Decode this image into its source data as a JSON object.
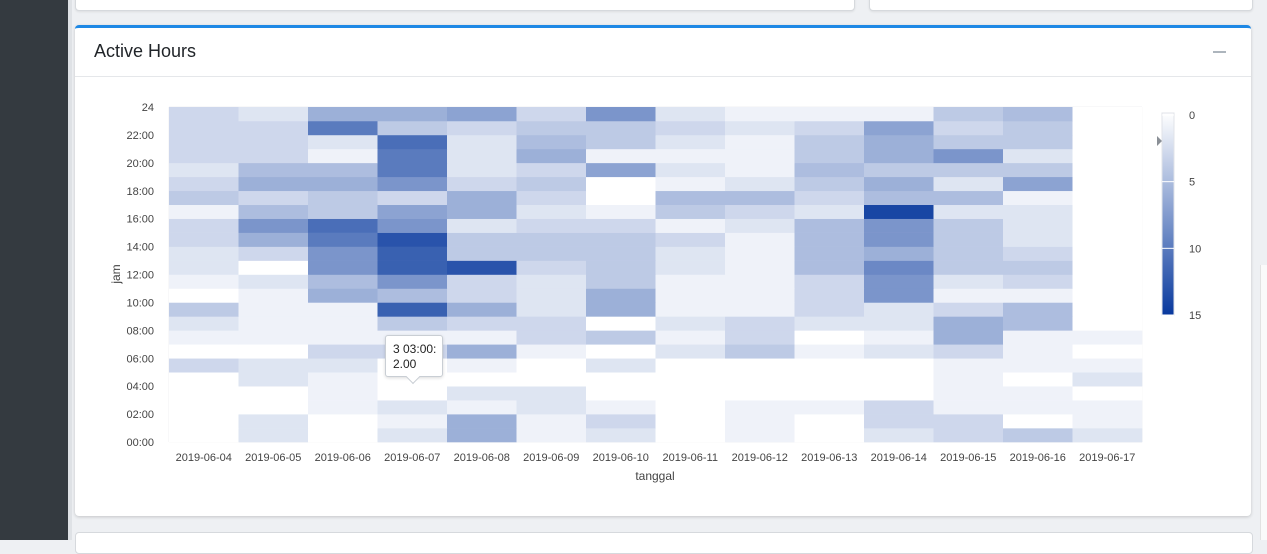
{
  "card": {
    "title": "Active Hours"
  },
  "tooltip": {
    "line1": "3 03:00:",
    "line2": "2.00"
  },
  "chart_data": {
    "type": "heatmap",
    "title": "",
    "xlabel": "tanggal",
    "ylabel": "jam",
    "x": [
      "2019-06-04",
      "2019-06-05",
      "2019-06-06",
      "2019-06-07",
      "2019-06-08",
      "2019-06-09",
      "2019-06-10",
      "2019-06-11",
      "2019-06-12",
      "2019-06-13",
      "2019-06-14",
      "2019-06-15",
      "2019-06-16",
      "2019-06-17"
    ],
    "y": [
      0,
      1,
      2,
      3,
      4,
      5,
      6,
      7,
      8,
      9,
      10,
      11,
      12,
      13,
      14,
      15,
      16,
      17,
      18,
      19,
      20,
      21,
      22,
      23
    ],
    "ytick_labels": [
      "00:00",
      "02:00",
      "04:00",
      "06:00",
      "08:00",
      "10:00",
      "12:00",
      "14:00",
      "16:00",
      "18:00",
      "20:00",
      "22:00",
      "24"
    ],
    "values": [
      [
        0,
        2,
        0,
        2,
        6,
        1,
        2,
        0,
        1,
        0,
        2,
        3,
        4,
        2
      ],
      [
        0,
        2,
        0,
        1,
        6,
        1,
        3,
        0,
        1,
        0,
        3,
        3,
        0,
        1
      ],
      [
        0,
        0,
        1,
        2,
        1,
        2,
        1,
        0,
        1,
        1,
        3,
        1,
        1,
        1
      ],
      [
        0,
        0,
        1,
        0,
        2,
        2,
        0,
        0,
        0,
        0,
        0,
        1,
        1,
        0
      ],
      [
        0,
        2,
        1,
        0,
        0,
        0,
        0,
        0,
        0,
        0,
        0,
        1,
        0,
        2
      ],
      [
        3,
        2,
        2,
        0,
        1,
        0,
        2,
        0,
        0,
        0,
        0,
        1,
        1,
        1
      ],
      [
        0,
        0,
        3,
        3,
        6,
        1,
        0,
        2,
        4,
        1,
        2,
        3,
        1,
        0
      ],
      [
        1,
        1,
        1,
        1,
        1,
        3,
        4,
        1,
        3,
        0,
        1,
        6,
        1,
        1
      ],
      [
        2,
        1,
        1,
        4,
        3,
        3,
        0,
        2,
        3,
        2,
        2,
        6,
        5,
        0
      ],
      [
        4,
        1,
        1,
        12,
        6,
        2,
        6,
        1,
        1,
        3,
        2,
        3,
        5,
        0
      ],
      [
        0,
        1,
        6,
        5,
        3,
        2,
        6,
        1,
        1,
        3,
        8,
        1,
        1,
        0
      ],
      [
        1,
        2,
        5,
        8,
        3,
        2,
        4,
        1,
        1,
        3,
        8,
        2,
        3,
        0
      ],
      [
        2,
        0,
        8,
        12,
        13,
        3,
        4,
        2,
        1,
        5,
        9,
        4,
        4,
        0
      ],
      [
        2,
        3,
        8,
        12,
        4,
        4,
        4,
        2,
        1,
        5,
        6,
        4,
        3,
        0
      ],
      [
        3,
        6,
        10,
        13,
        4,
        4,
        4,
        3,
        1,
        5,
        8,
        4,
        2,
        0
      ],
      [
        3,
        8,
        11,
        8,
        2,
        3,
        3,
        1,
        2,
        5,
        8,
        4,
        2,
        0
      ],
      [
        1,
        5,
        4,
        7,
        6,
        2,
        1,
        4,
        3,
        2,
        14,
        2,
        2,
        0
      ],
      [
        4,
        3,
        4,
        3,
        6,
        3,
        0,
        5,
        5,
        3,
        5,
        5,
        1,
        0
      ],
      [
        3,
        6,
        6,
        8,
        3,
        4,
        0,
        1,
        2,
        4,
        6,
        2,
        7,
        0
      ],
      [
        2,
        5,
        5,
        10,
        2,
        3,
        7,
        2,
        1,
        5,
        4,
        4,
        4,
        0
      ],
      [
        3,
        3,
        1,
        10,
        2,
        6,
        1,
        1,
        1,
        4,
        6,
        8,
        2,
        0
      ],
      [
        3,
        3,
        2,
        11,
        2,
        5,
        4,
        2,
        1,
        4,
        6,
        4,
        4,
        0
      ],
      [
        3,
        3,
        10,
        4,
        3,
        4,
        4,
        3,
        2,
        3,
        7,
        3,
        4,
        0
      ],
      [
        3,
        2,
        6,
        6,
        7,
        3,
        8,
        2,
        1,
        1,
        1,
        4,
        5,
        0
      ]
    ],
    "color_scale": {
      "min": 0,
      "max": 15,
      "low_color": "#ffffff",
      "high_color": "#08399e",
      "ticks": [
        0,
        5,
        10,
        15
      ]
    },
    "legend_position": "right"
  }
}
